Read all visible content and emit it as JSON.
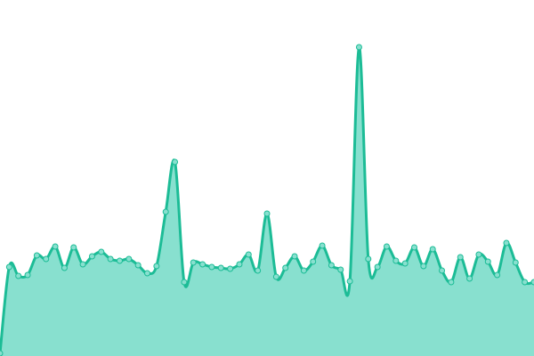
{
  "chart_data": {
    "type": "area",
    "title": "",
    "xlabel": "",
    "ylabel": "",
    "grid": false,
    "legend": "none",
    "ylim": [
      0,
      400
    ],
    "colors": {
      "line": "#1cbc96",
      "fill": "#88e0cf",
      "point_fill": "#88e0cf"
    },
    "series": [
      {
        "values": [
          3,
          100,
          90,
          91,
          113,
          109,
          123,
          99,
          122,
          103,
          112,
          117,
          109,
          107,
          109,
          102,
          93,
          101,
          162,
          218,
          83,
          105,
          103,
          100,
          99,
          98,
          103,
          114,
          96,
          160,
          89,
          99,
          112,
          96,
          106,
          124,
          102,
          97,
          84,
          347,
          109,
          100,
          123,
          107,
          104,
          122,
          101,
          120,
          96,
          83,
          111,
          87,
          114,
          106,
          91,
          127,
          105,
          83,
          83
        ]
      }
    ]
  }
}
